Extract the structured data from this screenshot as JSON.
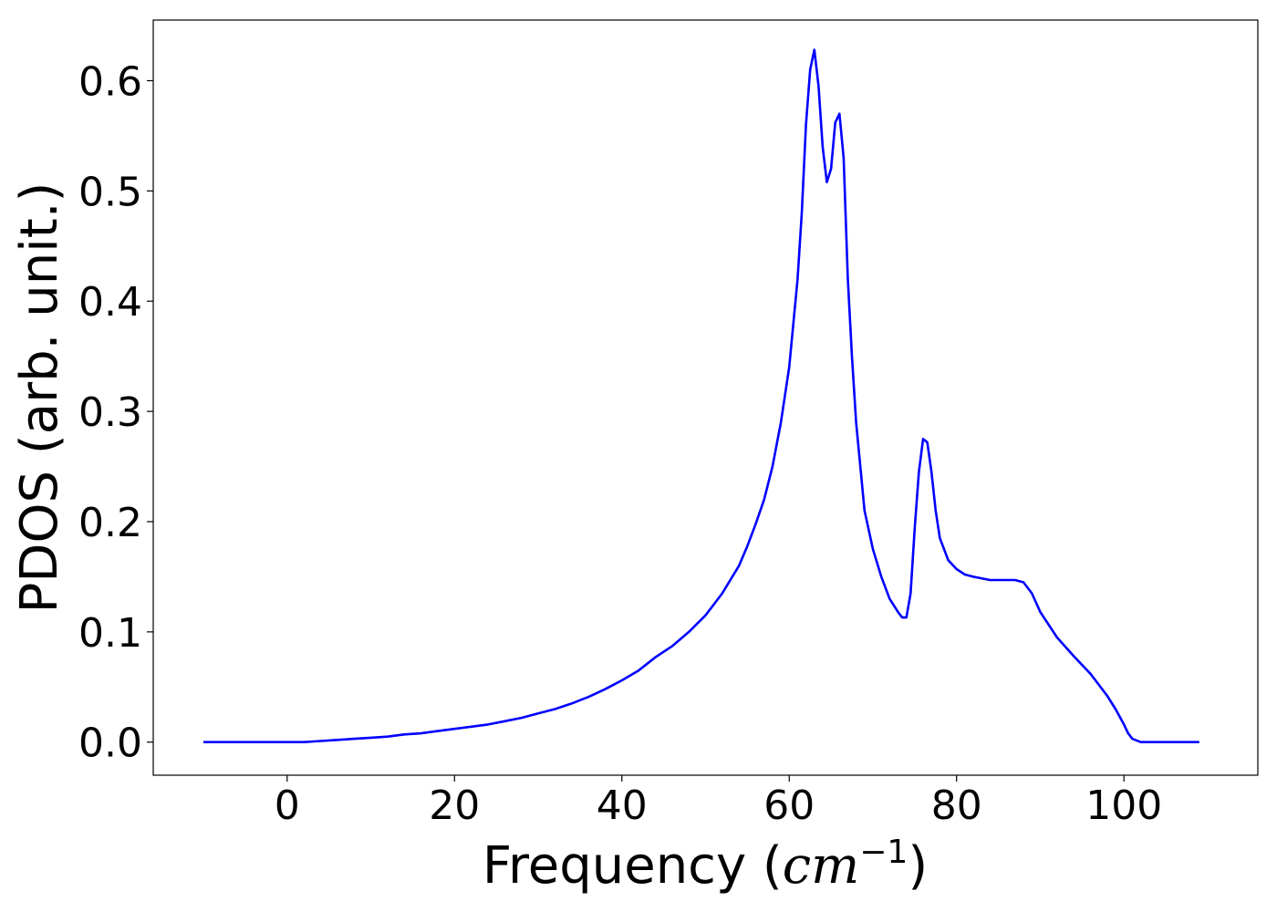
{
  "chart_data": {
    "type": "line",
    "title": "",
    "xlabel": "Frequency (",
    "xlabel_math": "cm",
    "xlabel_sup": "−1",
    "xlabel_close": ")",
    "ylabel": "PDOS (arb. unit.)",
    "xlim": [
      -16,
      116
    ],
    "ylim": [
      -0.03,
      0.655
    ],
    "xticks": [
      0,
      20,
      40,
      60,
      80,
      100
    ],
    "xtick_labels": [
      "0",
      "20",
      "40",
      "60",
      "80",
      "100"
    ],
    "yticks": [
      0.0,
      0.1,
      0.2,
      0.3,
      0.4,
      0.5,
      0.6
    ],
    "ytick_labels": [
      "0.0",
      "0.1",
      "0.2",
      "0.3",
      "0.4",
      "0.5",
      "0.6"
    ],
    "grid": false,
    "legend": "none",
    "color": "#0000ff",
    "series": [
      {
        "x": [
          -10,
          -5,
          0,
          2,
          4,
          6,
          8,
          10,
          12,
          14,
          16,
          18,
          20,
          22,
          24,
          26,
          28,
          30,
          32,
          34,
          36,
          38,
          40,
          42,
          44,
          46,
          48,
          50,
          52,
          54,
          55,
          56,
          57,
          58,
          59,
          60,
          61,
          61.5,
          62,
          62.5,
          63,
          63.5,
          64,
          64.5,
          65,
          65.5,
          66,
          66.5,
          67,
          67.5,
          68,
          69,
          70,
          71,
          72,
          73,
          73.5,
          74,
          74.5,
          75,
          75.5,
          76,
          76.5,
          77,
          77.5,
          78,
          79,
          80,
          81,
          82,
          84,
          86,
          87,
          88,
          89,
          90,
          92,
          94,
          96,
          97,
          98,
          99,
          100,
          100.5,
          101,
          102,
          104,
          106,
          109
        ],
        "y": [
          0.0,
          0.0,
          0.0,
          0.0,
          0.001,
          0.002,
          0.003,
          0.004,
          0.005,
          0.007,
          0.008,
          0.01,
          0.012,
          0.014,
          0.016,
          0.019,
          0.022,
          0.026,
          0.03,
          0.035,
          0.041,
          0.048,
          0.056,
          0.065,
          0.077,
          0.087,
          0.1,
          0.115,
          0.135,
          0.16,
          0.178,
          0.198,
          0.22,
          0.25,
          0.29,
          0.34,
          0.42,
          0.48,
          0.56,
          0.61,
          0.628,
          0.595,
          0.54,
          0.508,
          0.52,
          0.562,
          0.57,
          0.53,
          0.42,
          0.35,
          0.29,
          0.21,
          0.175,
          0.15,
          0.13,
          0.118,
          0.113,
          0.113,
          0.135,
          0.195,
          0.245,
          0.275,
          0.272,
          0.245,
          0.21,
          0.185,
          0.165,
          0.157,
          0.152,
          0.15,
          0.147,
          0.147,
          0.147,
          0.145,
          0.135,
          0.118,
          0.095,
          0.078,
          0.062,
          0.052,
          0.042,
          0.03,
          0.016,
          0.008,
          0.003,
          0.0,
          0.0,
          0.0,
          0.0
        ]
      }
    ]
  }
}
